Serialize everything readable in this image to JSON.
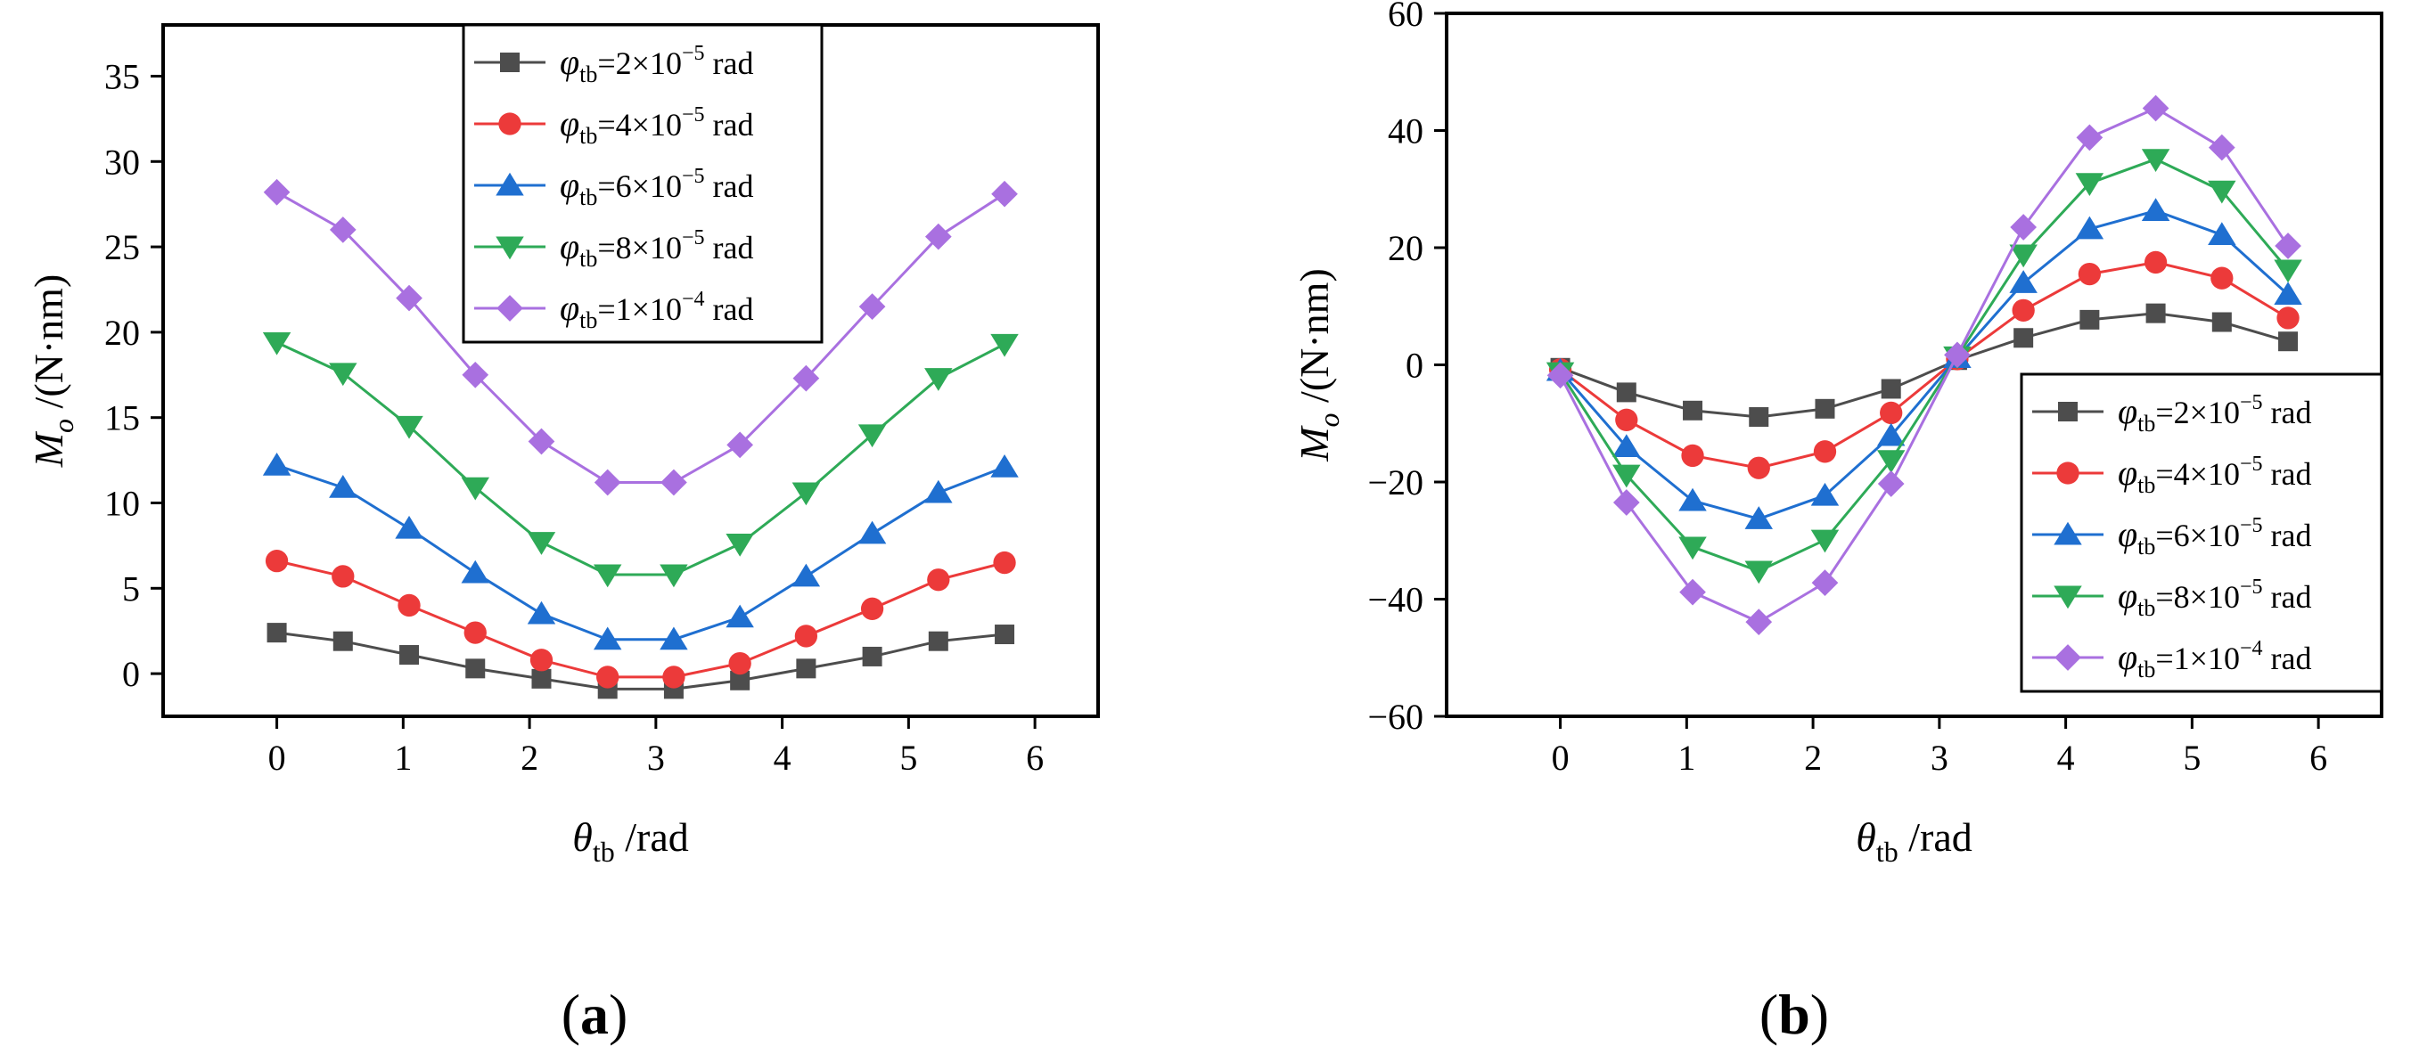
{
  "panel_labels": [
    "(a)",
    "(b)"
  ],
  "chart_data": [
    {
      "type": "line",
      "panel": "(a)",
      "xlabel": {
        "sym": "θ",
        "sub": "tb",
        "unit": " /rad"
      },
      "ylabel": {
        "sym": "M",
        "sub": "o",
        "unit": " /(N·nm)"
      },
      "xlim": [
        -0.9,
        6.5
      ],
      "ylim": [
        -2.5,
        38
      ],
      "xticks": [
        0,
        1,
        2,
        3,
        4,
        5,
        6
      ],
      "yticks": [
        0,
        5,
        10,
        15,
        20,
        25,
        30,
        35
      ],
      "legend_position": "top-center",
      "x": [
        0,
        0.5236,
        1.0472,
        1.5708,
        2.0944,
        2.618,
        3.1416,
        3.6652,
        4.1888,
        4.7124,
        5.236,
        5.7596
      ],
      "series": [
        {
          "label": {
            "pre": "φ",
            "sub": "tb",
            "mid": "=2×10",
            "sup": "−5",
            "post": " rad"
          },
          "color": "#4d4d4d",
          "marker": "square",
          "values": [
            2.4,
            1.9,
            1.1,
            0.3,
            -0.3,
            -0.9,
            -0.9,
            -0.4,
            0.3,
            1.0,
            1.9,
            2.3
          ]
        },
        {
          "label": {
            "pre": "φ",
            "sub": "tb",
            "mid": "=4×10",
            "sup": "−5",
            "post": " rad"
          },
          "color": "#ec3a3a",
          "marker": "circle",
          "values": [
            6.6,
            5.7,
            4.0,
            2.4,
            0.8,
            -0.2,
            -0.2,
            0.6,
            2.2,
            3.8,
            5.5,
            6.5
          ]
        },
        {
          "label": {
            "pre": "φ",
            "sub": "tb",
            "mid": "=6×10",
            "sup": "−5",
            "post": " rad"
          },
          "color": "#1f6fd0",
          "marker": "triangle-up",
          "values": [
            12.2,
            10.9,
            8.5,
            5.9,
            3.5,
            2.0,
            2.0,
            3.3,
            5.7,
            8.2,
            10.6,
            12.1
          ]
        },
        {
          "label": {
            "pre": "φ",
            "sub": "tb",
            "mid": "=8×10",
            "sup": "−5",
            "post": " rad"
          },
          "color": "#2eaa57",
          "marker": "triangle-down",
          "values": [
            19.4,
            17.6,
            14.5,
            10.9,
            7.7,
            5.8,
            5.8,
            7.6,
            10.6,
            14.0,
            17.3,
            19.3
          ]
        },
        {
          "label": {
            "pre": "φ",
            "sub": "tb",
            "mid": "=1×10",
            "sup": "−4",
            "post": " rad"
          },
          "color": "#a970e0",
          "marker": "diamond",
          "values": [
            28.2,
            26.0,
            22.0,
            17.5,
            13.6,
            11.2,
            11.2,
            13.4,
            17.3,
            21.5,
            25.6,
            28.1
          ]
        }
      ]
    },
    {
      "type": "line",
      "panel": "(b)",
      "xlabel": {
        "sym": "θ",
        "sub": "tb",
        "unit": " /rad"
      },
      "ylabel": {
        "sym": "M",
        "sub": "o",
        "unit": " /(N·nm)"
      },
      "xlim": [
        -0.9,
        6.5
      ],
      "ylim": [
        -60,
        60
      ],
      "xticks": [
        0,
        1,
        2,
        3,
        4,
        5,
        6
      ],
      "yticks": [
        -60,
        -40,
        -20,
        0,
        20,
        40,
        60
      ],
      "legend_position": "bottom-right",
      "x": [
        0,
        0.5236,
        1.0472,
        1.5708,
        2.0944,
        2.618,
        3.1416,
        3.6652,
        4.1888,
        4.7124,
        5.236,
        5.7596
      ],
      "series": [
        {
          "label": {
            "pre": "φ",
            "sub": "tb",
            "mid": "=2×10",
            "sup": "−5",
            "post": " rad"
          },
          "color": "#4d4d4d",
          "marker": "square",
          "values": [
            -0.5,
            -4.7,
            -7.8,
            -8.9,
            -7.5,
            -4.1,
            0.8,
            4.6,
            7.7,
            8.8,
            7.3,
            4.0
          ]
        },
        {
          "label": {
            "pre": "φ",
            "sub": "tb",
            "mid": "=4×10",
            "sup": "−5",
            "post": " rad"
          },
          "color": "#ec3a3a",
          "marker": "circle",
          "values": [
            -0.8,
            -9.4,
            -15.5,
            -17.6,
            -14.8,
            -8.2,
            1.0,
            9.3,
            15.5,
            17.5,
            14.8,
            8.0
          ]
        },
        {
          "label": {
            "pre": "φ",
            "sub": "tb",
            "mid": "=6×10",
            "sup": "−5",
            "post": " rad"
          },
          "color": "#1f6fd0",
          "marker": "triangle-up",
          "values": [
            -1.0,
            -14.0,
            -23.2,
            -26.3,
            -22.3,
            -12.1,
            1.2,
            14.0,
            23.2,
            26.3,
            22.2,
            12.0
          ]
        },
        {
          "label": {
            "pre": "φ",
            "sub": "tb",
            "mid": "=8×10",
            "sup": "−5",
            "post": " rad"
          },
          "color": "#2eaa57",
          "marker": "triangle-down",
          "values": [
            -1.3,
            -18.8,
            -31.1,
            -35.2,
            -29.9,
            -16.3,
            1.4,
            18.8,
            31.0,
            35.1,
            29.7,
            16.2
          ]
        },
        {
          "label": {
            "pre": "φ",
            "sub": "tb",
            "mid": "=1×10",
            "sup": "−4",
            "post": " rad"
          },
          "color": "#a970e0",
          "marker": "diamond",
          "values": [
            -1.8,
            -23.5,
            -38.8,
            -43.9,
            -37.2,
            -20.3,
            1.7,
            23.5,
            38.8,
            43.8,
            37.1,
            20.3
          ]
        }
      ]
    }
  ]
}
